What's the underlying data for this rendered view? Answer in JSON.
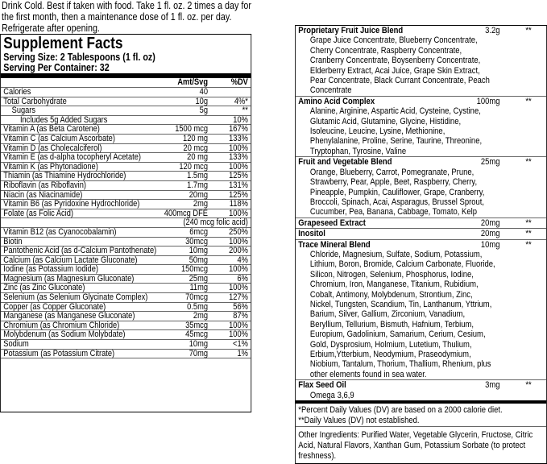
{
  "instructions": [
    "Drink Cold. Best if taken with food. Take 1 fl. oz. 2 times a day for",
    "the first month,  then a maintenance dose of 1 fl. oz. per day.",
    "Refrigerate after opening."
  ],
  "facts": {
    "title": "Supplement Facts",
    "serving_size": "Serving Size: 2 Tablespoons (1 fl. oz)",
    "servings_per_container": "Serving Per Container: 32",
    "header": {
      "amount": "Amt/Svg",
      "dv": "%DV"
    },
    "rows": [
      {
        "name": "Calories",
        "amount": "40"
      },
      {
        "name": "Total Carbohydrate",
        "amount": "10g",
        "dv": "4%*",
        "sub": [
          {
            "name": "Sugars",
            "amount": "5g",
            "dv": "**",
            "sub": [
              {
                "name": "Includes 5g Added Sugars",
                "dv": "10%"
              }
            ]
          }
        ]
      },
      {
        "name": "Vitamin A (as Beta Carotene)",
        "amount": "1500 mcg",
        "dv": "167%"
      },
      {
        "name": "Vitamin C (as Calcium Ascorbate)",
        "amount": "120 mg",
        "dv": "133%"
      },
      {
        "name": "Vitamin D (as Cholecalciferol)",
        "amount": "20 mcg",
        "dv": "100%"
      },
      {
        "name": "Vitamin E (as d-alpha tocopheryl Acetate)",
        "amount": "20 mg",
        "dv": "133%"
      },
      {
        "name": "Vitamin K (as Phytonadione)",
        "amount": "120 mcg",
        "dv": "100%"
      },
      {
        "name": "Thiamin (as Thiamine Hydrochloride)",
        "amount": "1.5mg",
        "dv": "125%"
      },
      {
        "name": "Riboflavin (as Riboflavin)",
        "amount": "1.7mg",
        "dv": "131%"
      },
      {
        "name": "Niacin (as Niacinamide)",
        "amount": "20mg",
        "dv": "125%"
      },
      {
        "name": "Vitamin B6 (as Pyridoxine Hydrochloride)",
        "amount": "2mg",
        "dv": "118%"
      },
      {
        "name": "Folate (as Folic Acid)",
        "amount": "400mcg  DFE",
        "dv": "100%",
        "note": "(240 mcg folic acid)"
      },
      {
        "name": "Vitamin B12 (as Cyanocobalamin)",
        "amount": "6mcg",
        "dv": "250%"
      },
      {
        "name": "Biotin",
        "amount": "30mcg",
        "dv": "100%"
      },
      {
        "name": "Pantothenic Acid (as d-Calcium Pantothenate)",
        "amount": "10mg",
        "dv": "200%"
      },
      {
        "name": "Calcium (as Calcium Lactate Gluconate)",
        "amount": "50mg",
        "dv": "4%"
      },
      {
        "name": "Iodine (as Potassium Iodide)",
        "amount": "150mcg",
        "dv": "100%"
      },
      {
        "name": "Magnesium (as Magnesium Gluconate)",
        "amount": "25mg",
        "dv": "6%"
      },
      {
        "name": "Zinc (as Zinc Gluconate)",
        "amount": "11mg",
        "dv": "100%"
      },
      {
        "name": "Selenium (as Selenium Glycinate Complex)",
        "amount": "70mcg",
        "dv": "127%"
      },
      {
        "name": "Copper (as Copper Gluconate)",
        "amount": "0.5mg",
        "dv": "56%"
      },
      {
        "name": "Manganese (as Manganese Gluconate)",
        "amount": "2mg",
        "dv": "87%"
      },
      {
        "name": "Chromium (as Chromium Chloride)",
        "amount": "35mcg",
        "dv": "100%"
      },
      {
        "name": "Molybdenum (as Sodium Molybdate)",
        "amount": "45mcg",
        "dv": "100%"
      },
      {
        "name": "Sodium",
        "amount": "10mg",
        "dv": "<1%"
      },
      {
        "name": "Potassium (as Potassium Citrate)",
        "amount": "70mg",
        "dv": "1%"
      }
    ]
  },
  "blends": [
    {
      "name": "Proprietary Fruit Juice Blend",
      "amount": "3.2g",
      "dv": "**",
      "description": "Grape Juice Concentrate, Blueberry Concentrate, Cherry Concentrate, Raspberry Concentrate, Cranberry Concentrate, Boysenberry Concentrate, Elderberry Extract, Acai Juice, Grape Skin Extract, Pear Concentrate, Black Currant Concentrate, Peach Concentrate"
    },
    {
      "name": "Amino Acid Complex",
      "amount": "100mg",
      "dv": "**",
      "description": "Alanine, Arginine, Aspartic Acid, Cysteine, Cystine, Glutamic Acid, Glutamine, Glycine, Histidine, Isoleucine, Leucine, Lysine, Methionine, Phenylalanine, Proline, Serine, Taurine, Threonine, Tryptophan, Tyrosine, Valine"
    },
    {
      "name": "Fruit and Vegetable Blend",
      "amount": "25mg",
      "dv": "**",
      "description": "Orange, Blueberry, Carrot, Pomegranate, Prune, Strawberry, Pear, Apple, Beet, Raspberry, Cherry, Pineapple, Pumpkin, Cauliflower, Grape, Cranberry, Broccoli, Spinach, Acai, Asparagus, Brussel Sprout, Cucumber, Pea, Banana, Cabbage, Tomato, Kelp"
    },
    {
      "name": "Grapeseed Extract",
      "amount": "20mg",
      "dv": "**"
    },
    {
      "name": "Inositol",
      "amount": "20mg",
      "dv": "**"
    },
    {
      "name": "Trace Mineral Blend",
      "amount": "10mg",
      "dv": "**",
      "description": "Chloride, Magnesium, Sulfate, Sodium, Potassium, Lithium, Boron, Bromide, Calcium Carbonate, Fluoride, Silicon, Nitrogen, Selenium, Phosphorus, Iodine, Chromium, Iron, Manganese, Titanium, Rubidium, Cobalt, Antimony, Molybdenum, Strontium, Zinc, Nickel, Tungsten, Scandium, Tin, Lanthanum, Yttrium, Barium, Silver, Gallium, Zirconium, Vanadium, Beryllium, Tellurium, Bismuth, Hafnium, Terbium, Europium, Gadolinium, Samarium, Cerium, Cesium, Gold, Dysprosium, Holmium, Lutetium, Thulium, Erbium,Ytterbium, Neodymium, Praseodymium, Niobium, Tantalum, Thorium, Thallium, Rhenium, plus other elements found in sea water."
    },
    {
      "name": "Flax Seed Oil",
      "amount": "3mg",
      "dv": "**",
      "description": "Omega 3,6,9"
    }
  ],
  "footnotes": [
    "*Percent Daily Values (DV) are based on a 2000 calorie diet.",
    "**Daily Values (DV) not established."
  ],
  "other_ingredients": "Other Ingredients: Purified Water, Vegetable Glycerin, Fructose, Citric Acid, Natural Flavors, Xanthan Gum, Potassium Sorbate (to protect freshness)."
}
